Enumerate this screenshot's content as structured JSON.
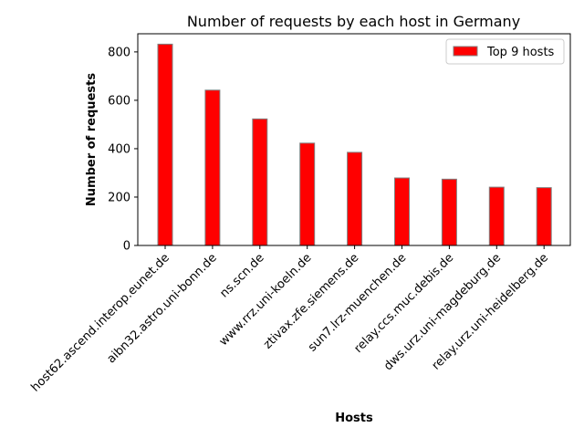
{
  "chart_data": {
    "type": "bar",
    "title": "Number of requests by each host in Germany",
    "xlabel": "Hosts",
    "ylabel": "Number of requests",
    "categories": [
      "host62.ascend.interop.eunet.de",
      "aibn32.astro.uni-bonn.de",
      "ns.scn.de",
      "www.rrz.uni-koeln.de",
      "ztivax.zfe.siemens.de",
      "sun7.lrz-muenchen.de",
      "relay.ccs.muc.debis.de",
      "dws.urz.uni-magdeburg.de",
      "relay.urz.uni-heidelberg.de"
    ],
    "series": [
      {
        "name": "Top 9 hosts",
        "color": "#ff0000",
        "edge_color": "#808080",
        "values": [
          832,
          642,
          523,
          423,
          385,
          279,
          274,
          241,
          239
        ]
      }
    ],
    "ylim": [
      0,
      875
    ],
    "yticks": [
      0,
      200,
      400,
      600,
      800
    ],
    "grid": false,
    "legend": "upper-right"
  }
}
